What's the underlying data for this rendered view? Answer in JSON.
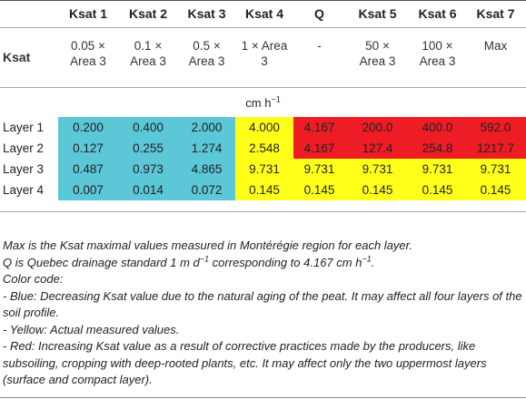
{
  "header": {
    "columns": [
      "",
      "Ksat 1",
      "Ksat 2",
      "Ksat 3",
      "Ksat 4",
      "Q",
      "Ksat 5",
      "Ksat 6",
      "Ksat 7"
    ]
  },
  "description": {
    "row_label": "Ksat",
    "cells": [
      [
        "0.05 ×",
        "Area 3"
      ],
      [
        "0.1 ×",
        "Area 3"
      ],
      [
        "0.5 ×",
        "Area 3"
      ],
      [
        "1 × Area",
        "3"
      ],
      [
        "-",
        ""
      ],
      [
        "50 ×",
        "Area 3"
      ],
      [
        "100 ×",
        "Area 3"
      ],
      [
        "Max",
        ""
      ]
    ]
  },
  "unit": {
    "base": "cm h",
    "exp": "−1"
  },
  "colors": {
    "blue": "#5bc7d7",
    "yellow": "#ffff1a",
    "red": "#ee1c24"
  },
  "rows": [
    {
      "label": "Layer 1",
      "values": [
        "0.200",
        "0.400",
        "2.000",
        "4.000",
        "4.167",
        "200.0",
        "400.0",
        "592.0"
      ],
      "colors": [
        "blue",
        "blue",
        "blue",
        "yellow",
        "red",
        "red",
        "red",
        "red"
      ]
    },
    {
      "label": "Layer 2",
      "values": [
        "0.127",
        "0.255",
        "1.274",
        "2.548",
        "4.167",
        "127.4",
        "254.8",
        "1217.7"
      ],
      "colors": [
        "blue",
        "blue",
        "blue",
        "yellow",
        "red",
        "red",
        "red",
        "red"
      ]
    },
    {
      "label": "Layer 3",
      "values": [
        "0.487",
        "0.973",
        "4.865",
        "9.731",
        "9.731",
        "9.731",
        "9.731",
        "9.731"
      ],
      "colors": [
        "blue",
        "blue",
        "blue",
        "yellow",
        "yellow",
        "yellow",
        "yellow",
        "yellow"
      ]
    },
    {
      "label": "Layer 4",
      "values": [
        "0.007",
        "0.014",
        "0.072",
        "0.145",
        "0.145",
        "0.145",
        "0.145",
        "0.145"
      ],
      "colors": [
        "blue",
        "blue",
        "blue",
        "yellow",
        "yellow",
        "yellow",
        "yellow",
        "yellow"
      ]
    }
  ],
  "notes": {
    "line1": "Max is the Ksat maximal values measured in Montérégie region for each layer.",
    "line2_a": "Q is Quebec drainage standard 1 m d",
    "line2_sup1": "−1",
    "line2_b": " corresponding to 4.167 cm h",
    "line2_sup2": "−1",
    "line2_c": ".",
    "line3": "Color code:",
    "line4": "- Blue: Decreasing Ksat value due to the natural aging of the peat. It may affect all four layers of the soil profile.",
    "line5": "- Yellow: Actual measured values.",
    "line6": "- Red: Increasing Ksat value as a result of corrective practices made by the producers, like subsoiling, cropping with deep-rooted plants, etc. It may affect only the two uppermost layers (surface and compact layer)."
  }
}
